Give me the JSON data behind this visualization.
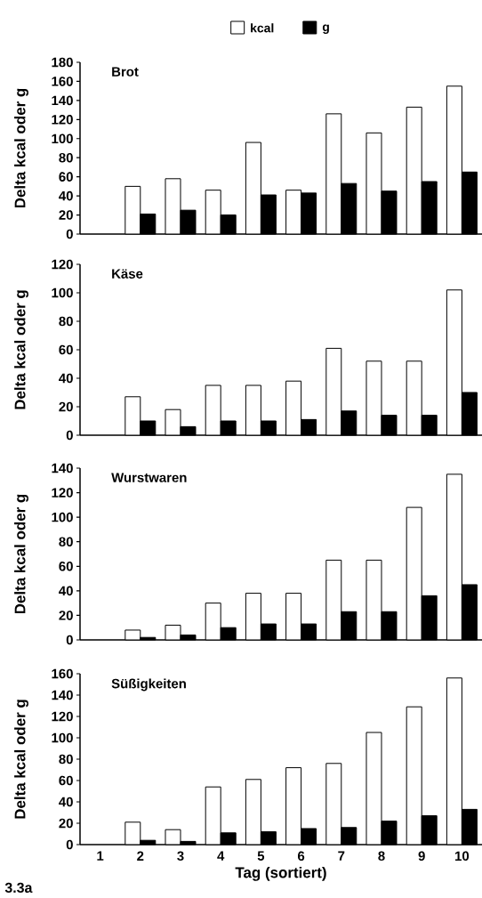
{
  "chart_data": [
    {
      "type": "bar",
      "title": "Brot",
      "ylabel": "Delta kcal oder g",
      "categories": [
        "1",
        "2",
        "3",
        "4",
        "5",
        "6",
        "7",
        "8",
        "9",
        "10"
      ],
      "ylim": [
        0,
        180
      ],
      "yticks": [
        0,
        20,
        40,
        60,
        80,
        100,
        120,
        140,
        160,
        180
      ],
      "tick_labels": "y",
      "legend": "top",
      "series": [
        {
          "name": "kcal",
          "color": "#ffffff",
          "values": [
            null,
            50,
            58,
            46,
            96,
            46,
            126,
            106,
            133,
            155
          ]
        },
        {
          "name": "g",
          "color": "#000000",
          "values": [
            null,
            21,
            25,
            20,
            41,
            43,
            53,
            45,
            55,
            65
          ]
        }
      ]
    },
    {
      "type": "bar",
      "title": "Käse",
      "ylabel": "Delta kcal oder g",
      "categories": [
        "1",
        "2",
        "3",
        "4",
        "5",
        "6",
        "7",
        "8",
        "9",
        "10"
      ],
      "ylim": [
        0,
        120
      ],
      "yticks": [
        0,
        20,
        40,
        60,
        80,
        100,
        120
      ],
      "tick_labels": "y",
      "series": [
        {
          "color": "#ffffff",
          "values": [
            null,
            27,
            18,
            35,
            35,
            38,
            61,
            52,
            52,
            102
          ]
        },
        {
          "color": "#000000",
          "values": [
            null,
            10,
            6,
            10,
            10,
            11,
            17,
            14,
            14,
            30
          ]
        }
      ]
    },
    {
      "type": "bar",
      "title": "Wurstwaren",
      "ylabel": "Delta kcal oder g",
      "categories": [
        "1",
        "2",
        "3",
        "4",
        "5",
        "6",
        "7",
        "8",
        "9",
        "10"
      ],
      "ylim": [
        0,
        140
      ],
      "yticks": [
        0,
        20,
        40,
        60,
        80,
        100,
        120,
        140
      ],
      "tick_labels": "y",
      "series": [
        {
          "color": "#ffffff",
          "values": [
            null,
            8,
            12,
            30,
            38,
            38,
            65,
            65,
            108,
            135
          ]
        },
        {
          "color": "#000000",
          "values": [
            null,
            2,
            4,
            10,
            13,
            13,
            23,
            23,
            36,
            45
          ]
        }
      ]
    },
    {
      "type": "bar",
      "title": "Süßigkeiten",
      "ylabel": "Delta kcal oder g",
      "xlabel": "Tag (sortiert)",
      "categories": [
        "1",
        "2",
        "3",
        "4",
        "5",
        "6",
        "7",
        "8",
        "9",
        "10"
      ],
      "ylim": [
        0,
        160
      ],
      "yticks": [
        0,
        20,
        40,
        60,
        80,
        100,
        120,
        140,
        160
      ],
      "annotations": [
        "3.3a"
      ],
      "series": [
        {
          "color": "#ffffff",
          "values": [
            null,
            21,
            14,
            54,
            61,
            72,
            76,
            105,
            129,
            156
          ]
        },
        {
          "color": "#000000",
          "values": [
            null,
            4,
            3,
            11,
            12,
            15,
            16,
            22,
            27,
            33
          ]
        }
      ]
    }
  ]
}
